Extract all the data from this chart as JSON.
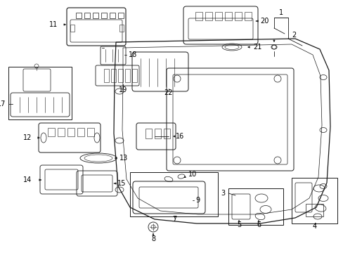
{
  "background_color": "#ffffff",
  "fig_width": 4.89,
  "fig_height": 3.6,
  "dpi": 100,
  "line_color": "#1a1a1a",
  "text_color": "#000000",
  "font_size": 7.0
}
